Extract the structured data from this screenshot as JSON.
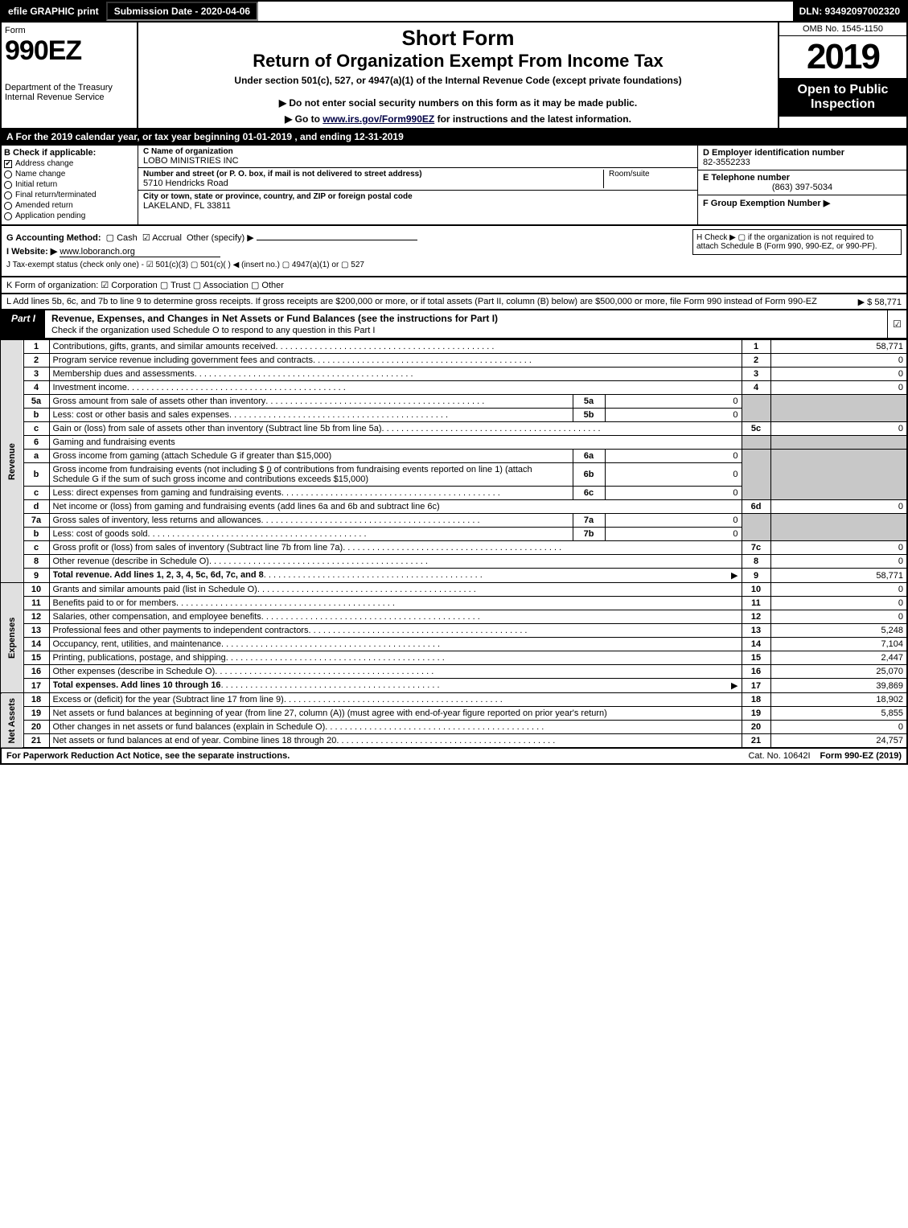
{
  "topbar": {
    "efile": "efile GRAPHIC print",
    "subdate_label": "Submission Date - 2020-04-06",
    "dln": "DLN: 93492097002320"
  },
  "header": {
    "form_word": "Form",
    "form_no": "990EZ",
    "dept": "Department of the Treasury\nInternal Revenue Service",
    "short_form": "Short Form",
    "return_title": "Return of Organization Exempt From Income Tax",
    "under": "Under section 501(c), 527, or 4947(a)(1) of the Internal Revenue Code (except private foundations)",
    "noenter": "▶ Do not enter social security numbers on this form as it may be made public.",
    "goto_pre": "▶ Go to ",
    "goto_link": "www.irs.gov/Form990EZ",
    "goto_post": " for instructions and the latest information.",
    "omb": "OMB No. 1545-1150",
    "year": "2019",
    "open": "Open to Public Inspection"
  },
  "taxyear": "A  For the 2019 calendar year, or tax year beginning 01-01-2019 , and ending 12-31-2019",
  "sectionB": {
    "header": "B  Check if applicable:",
    "items": [
      {
        "label": "Address change",
        "checked": true,
        "shape": "box"
      },
      {
        "label": "Name change",
        "checked": false,
        "shape": "circ"
      },
      {
        "label": "Initial return",
        "checked": false,
        "shape": "circ"
      },
      {
        "label": "Final return/terminated",
        "checked": false,
        "shape": "circ"
      },
      {
        "label": "Amended return",
        "checked": false,
        "shape": "circ"
      },
      {
        "label": "Application pending",
        "checked": false,
        "shape": "circ"
      }
    ]
  },
  "sectionC": {
    "name_lbl": "C Name of organization",
    "name": "LOBO MINISTRIES INC",
    "addr_lbl": "Number and street (or P. O. box, if mail is not delivered to street address)",
    "addr": "5710 Hendricks Road",
    "room_lbl": "Room/suite",
    "city_lbl": "City or town, state or province, country, and ZIP or foreign postal code",
    "city": "LAKELAND, FL  33811"
  },
  "sectionD": {
    "d_lbl": "D Employer identification number",
    "ein": "82-3552233",
    "e_lbl": "E Telephone number",
    "phone": "(863) 397-5034",
    "f_lbl": "F Group Exemption Number   ▶"
  },
  "rowG": {
    "label": "G Accounting Method:",
    "cash": "Cash",
    "accrual": "Accrual",
    "other": "Other (specify) ▶"
  },
  "rowH": "H  Check ▶  ▢  if the organization is not required to attach Schedule B (Form 990, 990-EZ, or 990-PF).",
  "rowI": {
    "label": "I Website: ▶",
    "value": "www.loboranch.org"
  },
  "rowJ": "J Tax-exempt status (check only one) - ☑ 501(c)(3)  ▢ 501(c)(  ) ◀ (insert no.)  ▢ 4947(a)(1) or  ▢ 527",
  "rowK": "K Form of organization:  ☑ Corporation  ▢ Trust  ▢ Association  ▢ Other",
  "rowL": {
    "text": "L Add lines 5b, 6c, and 7b to line 9 to determine gross receipts. If gross receipts are $200,000 or more, or if total assets (Part II, column (B) below) are $500,000 or more, file Form 990 instead of Form 990-EZ",
    "amount": "▶ $ 58,771"
  },
  "part1": {
    "tag": "Part I",
    "title": "Revenue, Expenses, and Changes in Net Assets or Fund Balances (see the instructions for Part I)",
    "subtitle": "Check if the organization used Schedule O to respond to any question in this Part I",
    "check": "☑"
  },
  "side_labels": {
    "revenue": "Revenue",
    "expenses": "Expenses",
    "netassets": "Net Assets"
  },
  "lines": {
    "1": {
      "desc": "Contributions, gifts, grants, and similar amounts received",
      "num": "1",
      "val": "58,771"
    },
    "2": {
      "desc": "Program service revenue including government fees and contracts",
      "num": "2",
      "val": "0"
    },
    "3": {
      "desc": "Membership dues and assessments",
      "num": "3",
      "val": "0"
    },
    "4": {
      "desc": "Investment income",
      "num": "4",
      "val": "0"
    },
    "5a": {
      "desc": "Gross amount from sale of assets other than inventory",
      "sub": "5a",
      "subval": "0"
    },
    "5b": {
      "desc": "Less: cost or other basis and sales expenses",
      "sub": "5b",
      "subval": "0"
    },
    "5c": {
      "desc": "Gain or (loss) from sale of assets other than inventory (Subtract line 5b from line 5a)",
      "num": "5c",
      "val": "0"
    },
    "6": {
      "desc": "Gaming and fundraising events"
    },
    "6a": {
      "desc": "Gross income from gaming (attach Schedule G if greater than $15,000)",
      "sub": "6a",
      "subval": "0"
    },
    "6b": {
      "desc_pre": "Gross income from fundraising events (not including $ ",
      "desc_under": "0",
      "desc_mid": " of contributions from fundraising events reported on line 1) (attach Schedule G if the sum of such gross income and contributions exceeds $15,000)",
      "sub": "6b",
      "subval": "0"
    },
    "6c": {
      "desc": "Less: direct expenses from gaming and fundraising events",
      "sub": "6c",
      "subval": "0"
    },
    "6d": {
      "desc": "Net income or (loss) from gaming and fundraising events (add lines 6a and 6b and subtract line 6c)",
      "num": "6d",
      "val": "0"
    },
    "7a": {
      "desc": "Gross sales of inventory, less returns and allowances",
      "sub": "7a",
      "subval": "0"
    },
    "7b": {
      "desc": "Less: cost of goods sold",
      "sub": "7b",
      "subval": "0"
    },
    "7c": {
      "desc": "Gross profit or (loss) from sales of inventory (Subtract line 7b from line 7a)",
      "num": "7c",
      "val": "0"
    },
    "8": {
      "desc": "Other revenue (describe in Schedule O)",
      "num": "8",
      "val": "0"
    },
    "9": {
      "desc": "Total revenue. Add lines 1, 2, 3, 4, 5c, 6d, 7c, and 8",
      "num": "9",
      "val": "58,771",
      "bold": true,
      "arrow": true
    },
    "10": {
      "desc": "Grants and similar amounts paid (list in Schedule O)",
      "num": "10",
      "val": "0"
    },
    "11": {
      "desc": "Benefits paid to or for members",
      "num": "11",
      "val": "0"
    },
    "12": {
      "desc": "Salaries, other compensation, and employee benefits",
      "num": "12",
      "val": "0"
    },
    "13": {
      "desc": "Professional fees and other payments to independent contractors",
      "num": "13",
      "val": "5,248"
    },
    "14": {
      "desc": "Occupancy, rent, utilities, and maintenance",
      "num": "14",
      "val": "7,104"
    },
    "15": {
      "desc": "Printing, publications, postage, and shipping",
      "num": "15",
      "val": "2,447"
    },
    "16": {
      "desc": "Other expenses (describe in Schedule O)",
      "num": "16",
      "val": "25,070"
    },
    "17": {
      "desc": "Total expenses. Add lines 10 through 16",
      "num": "17",
      "val": "39,869",
      "bold": true,
      "arrow": true
    },
    "18": {
      "desc": "Excess or (deficit) for the year (Subtract line 17 from line 9)",
      "num": "18",
      "val": "18,902"
    },
    "19": {
      "desc": "Net assets or fund balances at beginning of year (from line 27, column (A)) (must agree with end-of-year figure reported on prior year's return)",
      "num": "19",
      "val": "5,855"
    },
    "20": {
      "desc": "Other changes in net assets or fund balances (explain in Schedule O)",
      "num": "20",
      "val": "0"
    },
    "21": {
      "desc": "Net assets or fund balances at end of year. Combine lines 18 through 20",
      "num": "21",
      "val": "24,757"
    }
  },
  "footer": {
    "fpr": "For Paperwork Reduction Act Notice, see the separate instructions.",
    "cat": "Cat. No. 10642I",
    "form": "Form 990-EZ (2019)"
  },
  "colors": {
    "black": "#000000",
    "white": "#ffffff",
    "shade": "#c8c8c8",
    "lightshade": "#e0e0e0"
  }
}
